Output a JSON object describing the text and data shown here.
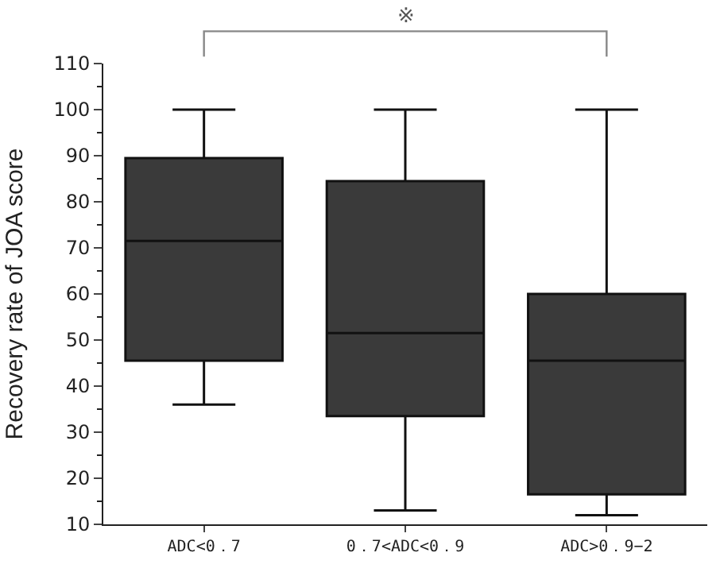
{
  "chart_data": {
    "type": "box",
    "ylabel": "Recovery rate of JOA score",
    "categories": [
      "ADC<0．7",
      "0．7<ADC<0．9",
      "ADC>0．9−2"
    ],
    "color": "#3a3a3a",
    "boxes": [
      {
        "low": 36,
        "q1": 45.5,
        "median": 71.5,
        "q3": 89.5,
        "high": 100
      },
      {
        "low": 13,
        "q1": 33.5,
        "median": 51.5,
        "q3": 84.5,
        "high": 100
      },
      {
        "low": 12,
        "q1": 16.5,
        "median": 45.5,
        "q3": 60,
        "high": 100
      }
    ],
    "ylim": [
      10,
      110
    ],
    "yticks": [
      10,
      20,
      30,
      40,
      50,
      60,
      70,
      80,
      90,
      100,
      110
    ],
    "annotations": [
      "※"
    ]
  }
}
